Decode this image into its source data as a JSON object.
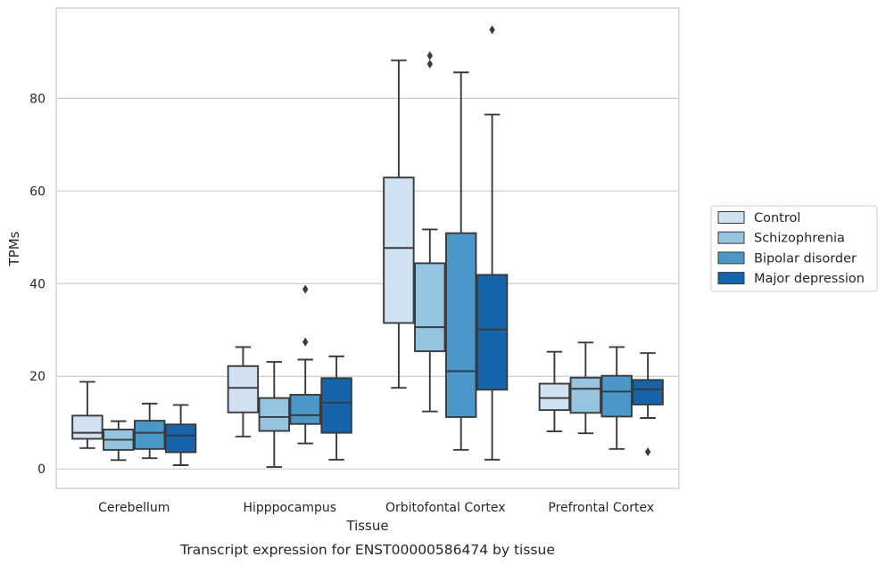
{
  "chart_data": {
    "type": "boxplot",
    "title": "",
    "caption": "Transcript expression for ENST00000586474 by tissue",
    "xlabel": "Tissue",
    "ylabel": "TPMs",
    "ylim": [
      -4.2,
      99.5
    ],
    "yticks": [
      0,
      20,
      40,
      60,
      80
    ],
    "grid": "horizontal",
    "legend_position": "right",
    "categories": [
      "Cerebellum",
      "Hipppocampus",
      "Orbitofontal Cortex",
      "Prefrontal Cortex"
    ],
    "series": [
      {
        "name": "Control",
        "color": "#d0e1f2",
        "boxes": [
          {
            "whislo": 4.5,
            "q1": 6.5,
            "med": 7.8,
            "q3": 11.5,
            "whishi": 18.8,
            "fliers": []
          },
          {
            "whislo": 7.0,
            "q1": 12.2,
            "med": 17.5,
            "q3": 22.2,
            "whishi": 26.3,
            "fliers": []
          },
          {
            "whislo": 17.5,
            "q1": 31.5,
            "med": 47.7,
            "q3": 62.9,
            "whishi": 88.2,
            "fliers": []
          },
          {
            "whislo": 8.1,
            "q1": 12.7,
            "med": 15.3,
            "q3": 18.4,
            "whishi": 25.3,
            "fliers": []
          }
        ]
      },
      {
        "name": "Schizophrenia",
        "color": "#94c4df",
        "boxes": [
          {
            "whislo": 1.9,
            "q1": 4.1,
            "med": 6.3,
            "q3": 8.5,
            "whishi": 10.3,
            "fliers": []
          },
          {
            "whislo": 0.4,
            "q1": 8.2,
            "med": 11.2,
            "q3": 15.3,
            "whishi": 23.1,
            "fliers": []
          },
          {
            "whislo": 12.4,
            "q1": 25.4,
            "med": 30.6,
            "q3": 44.4,
            "whishi": 51.7,
            "fliers": [
              87.4,
              89.2
            ]
          },
          {
            "whislo": 7.7,
            "q1": 12.1,
            "med": 17.3,
            "q3": 19.7,
            "whishi": 27.3,
            "fliers": []
          }
        ]
      },
      {
        "name": "Bipolar disorder",
        "color": "#4a98c9",
        "boxes": [
          {
            "whislo": 2.3,
            "q1": 4.3,
            "med": 7.8,
            "q3": 10.4,
            "whishi": 14.1,
            "fliers": []
          },
          {
            "whislo": 5.5,
            "q1": 9.7,
            "med": 11.6,
            "q3": 16.0,
            "whishi": 23.6,
            "fliers": [
              27.4,
              38.8
            ]
          },
          {
            "whislo": 4.1,
            "q1": 11.2,
            "med": 21.1,
            "q3": 50.9,
            "whishi": 85.6,
            "fliers": []
          },
          {
            "whislo": 4.3,
            "q1": 11.3,
            "med": 16.7,
            "q3": 20.1,
            "whishi": 26.3,
            "fliers": []
          }
        ]
      },
      {
        "name": "Major depression",
        "color": "#1764ab",
        "boxes": [
          {
            "whislo": 0.8,
            "q1": 3.6,
            "med": 7.2,
            "q3": 9.6,
            "whishi": 13.8,
            "fliers": []
          },
          {
            "whislo": 2.0,
            "q1": 7.8,
            "med": 14.3,
            "q3": 19.6,
            "whishi": 24.3,
            "fliers": []
          },
          {
            "whislo": 2.0,
            "q1": 17.1,
            "med": 30.1,
            "q3": 41.9,
            "whishi": 76.5,
            "fliers": [
              94.8
            ]
          },
          {
            "whislo": 11.0,
            "q1": 13.9,
            "med": 17.2,
            "q3": 19.2,
            "whishi": 25.0,
            "fliers": [
              3.7
            ]
          }
        ]
      }
    ]
  }
}
